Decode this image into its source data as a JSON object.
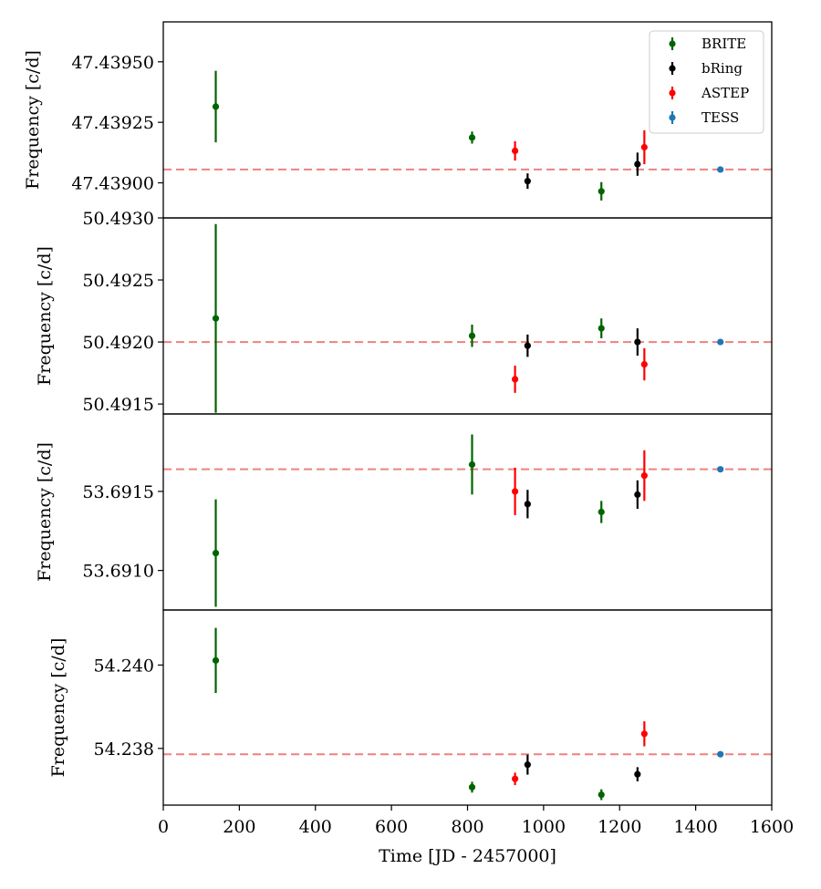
{
  "chart_data": {
    "type": "scatter",
    "xlabel": "Time [JD - 2457000]",
    "xlim": [
      0,
      1600
    ],
    "xticks": [
      0,
      200,
      400,
      600,
      800,
      1000,
      1200,
      1400,
      1600
    ],
    "legend": {
      "location": "top-right",
      "entries": [
        {
          "name": "BRITE",
          "color": "#006400"
        },
        {
          "name": "bRing",
          "color": "#000000"
        },
        {
          "name": "ASTEP",
          "color": "#ff0000"
        },
        {
          "name": "TESS",
          "color": "#1f77b4"
        }
      ]
    },
    "reference_line_color": "#f08080",
    "panels": [
      {
        "ylabel": "Frequency [c/d]",
        "ylim": [
          47.438855,
          47.439665
        ],
        "yticks": [
          47.439,
          47.43925,
          47.4395
        ],
        "ytick_labels": [
          "47.43900",
          "47.43925",
          "47.43950"
        ],
        "reference": 47.439055,
        "series": [
          {
            "name": "BRITE",
            "points": [
              {
                "x": 138,
                "y": 47.439315,
                "err": 0.000148
              },
              {
                "x": 812,
                "y": 47.439187,
                "err": 2.5e-05
              },
              {
                "x": 1152,
                "y": 47.438965,
                "err": 3.8e-05
              }
            ]
          },
          {
            "name": "bRing",
            "points": [
              {
                "x": 958,
                "y": 47.439007,
                "err": 3.2e-05
              },
              {
                "x": 1247,
                "y": 47.439077,
                "err": 4.8e-05
              }
            ]
          },
          {
            "name": "ASTEP",
            "points": [
              {
                "x": 925,
                "y": 47.439132,
                "err": 4e-05
              },
              {
                "x": 1265,
                "y": 47.439147,
                "err": 7e-05
              }
            ]
          },
          {
            "name": "TESS",
            "points": [
              {
                "x": 1465,
                "y": 47.439055,
                "err": 3e-06
              }
            ]
          }
        ]
      },
      {
        "ylabel": "Frequency [c/d]",
        "ylim": [
          50.49142,
          50.493
        ],
        "yticks": [
          50.4915,
          50.492,
          50.4925,
          50.493
        ],
        "ytick_labels": [
          "50.4915",
          "50.4920",
          "50.4925",
          "50.4930"
        ],
        "reference": 50.492,
        "series": [
          {
            "name": "BRITE",
            "points": [
              {
                "x": 138,
                "y": 50.49219,
                "err": 0.00076
              },
              {
                "x": 812,
                "y": 50.49205,
                "err": 9e-05
              },
              {
                "x": 1152,
                "y": 50.49211,
                "err": 8e-05
              }
            ]
          },
          {
            "name": "bRing",
            "points": [
              {
                "x": 958,
                "y": 50.49197,
                "err": 9e-05
              },
              {
                "x": 1247,
                "y": 50.492,
                "err": 0.00011
              }
            ]
          },
          {
            "name": "ASTEP",
            "points": [
              {
                "x": 925,
                "y": 50.4917,
                "err": 0.00011
              },
              {
                "x": 1265,
                "y": 50.49182,
                "err": 0.00013
              }
            ]
          },
          {
            "name": "TESS",
            "points": [
              {
                "x": 1465,
                "y": 50.492,
                "err": 1e-05
              }
            ]
          }
        ]
      },
      {
        "ylabel": "Frequency [c/d]",
        "ylim": [
          53.69075,
          53.69199
        ],
        "yticks": [
          53.691,
          53.6915
        ],
        "ytick_labels": [
          "53.6910",
          "53.6915"
        ],
        "reference": 53.69164,
        "series": [
          {
            "name": "BRITE",
            "points": [
              {
                "x": 138,
                "y": 53.69111,
                "err": 0.00034
              },
              {
                "x": 812,
                "y": 53.69167,
                "err": 0.00019
              },
              {
                "x": 1152,
                "y": 53.69137,
                "err": 7e-05
              }
            ]
          },
          {
            "name": "bRing",
            "points": [
              {
                "x": 958,
                "y": 53.69142,
                "err": 9e-05
              },
              {
                "x": 1247,
                "y": 53.69148,
                "err": 9e-05
              }
            ]
          },
          {
            "name": "ASTEP",
            "points": [
              {
                "x": 925,
                "y": 53.6915,
                "err": 0.00015
              },
              {
                "x": 1265,
                "y": 53.6916,
                "err": 0.00016
              }
            ]
          },
          {
            "name": "TESS",
            "points": [
              {
                "x": 1465,
                "y": 53.69164,
                "err": 1e-05
              }
            ]
          }
        ]
      },
      {
        "ylabel": "Frequency [c/d]",
        "ylim": [
          54.23664,
          54.24132
        ],
        "yticks": [
          54.238,
          54.24
        ],
        "ytick_labels": [
          "54.238",
          "54.240"
        ],
        "reference": 54.23786,
        "series": [
          {
            "name": "BRITE",
            "points": [
              {
                "x": 138,
                "y": 54.24011,
                "err": 0.00078
              },
              {
                "x": 812,
                "y": 54.23707,
                "err": 0.00013
              },
              {
                "x": 1152,
                "y": 54.23689,
                "err": 0.00013
              }
            ]
          },
          {
            "name": "bRing",
            "points": [
              {
                "x": 958,
                "y": 54.23761,
                "err": 0.00024
              },
              {
                "x": 1247,
                "y": 54.23738,
                "err": 0.00017
              }
            ]
          },
          {
            "name": "ASTEP",
            "points": [
              {
                "x": 925,
                "y": 54.23727,
                "err": 0.00015
              },
              {
                "x": 1265,
                "y": 54.23835,
                "err": 0.0003
              }
            ]
          },
          {
            "name": "TESS",
            "points": [
              {
                "x": 1465,
                "y": 54.23786,
                "err": 3e-05
              }
            ]
          }
        ]
      }
    ]
  }
}
